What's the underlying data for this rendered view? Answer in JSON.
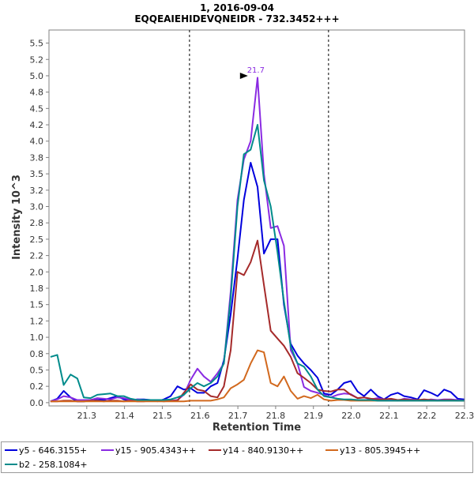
{
  "chart_data": {
    "type": "line",
    "title": "1, 2016-09-04",
    "subtitle": "EQQEAIEHIDEVQNEIDR - 732.3452+++",
    "xlabel": "Retention Time",
    "ylabel": "Intensity 10^3",
    "xlim": [
      21.2,
      22.3
    ],
    "ylim": [
      -0.05,
      5.7
    ],
    "x_ticks": [
      "21.3",
      "21.4",
      "21.5",
      "21.6",
      "21.7",
      "21.8",
      "21.9",
      "22.0",
      "22.1",
      "22.2",
      "22.3"
    ],
    "y_ticks": [
      "0.0",
      "0.2",
      "0.5",
      "0.8",
      "1.0",
      "1.2",
      "1.5",
      "1.8",
      "2.0",
      "2.2",
      "2.5",
      "2.8",
      "3.0",
      "3.2",
      "3.5",
      "3.8",
      "4.0",
      "4.2",
      "4.5",
      "4.8",
      "5.0",
      "5.2",
      "5.5"
    ],
    "y_tick_values": [
      0,
      0.25,
      0.5,
      0.75,
      1.0,
      1.25,
      1.5,
      1.75,
      2.0,
      2.25,
      2.5,
      2.75,
      3.0,
      3.25,
      3.5,
      3.75,
      4.0,
      4.25,
      4.5,
      4.75,
      5.0,
      5.25,
      5.5
    ],
    "boundaries": [
      21.572,
      21.94
    ],
    "peak_annotation": {
      "label": "21.7",
      "x": 21.735,
      "y": 5.0
    },
    "legend_position": "bottom",
    "grid": false,
    "series": [
      {
        "name": "y5 - 646.3155+",
        "color": "#0000dd",
        "x": [
          21.204,
          21.222,
          21.239,
          21.257,
          21.275,
          21.292,
          21.31,
          21.328,
          21.345,
          21.363,
          21.381,
          21.398,
          21.416,
          21.434,
          21.451,
          21.469,
          21.487,
          21.504,
          21.522,
          21.54,
          21.557,
          21.575,
          21.593,
          21.61,
          21.628,
          21.646,
          21.663,
          21.681,
          21.699,
          21.716,
          21.734,
          21.752,
          21.769,
          21.787,
          21.805,
          21.822,
          21.84,
          21.858,
          21.875,
          21.893,
          21.911,
          21.928,
          21.946,
          21.964,
          21.981,
          21.999,
          22.017,
          22.034,
          22.052,
          22.07,
          22.087,
          22.105,
          22.123,
          22.14,
          22.158,
          22.176,
          22.193,
          22.211,
          22.229,
          22.246,
          22.264,
          22.282,
          22.299
        ],
        "y": [
          0.02,
          0.06,
          0.18,
          0.08,
          0.02,
          0.02,
          0.03,
          0.04,
          0.04,
          0.07,
          0.1,
          0.05,
          0.03,
          0.05,
          0.05,
          0.04,
          0.02,
          0.05,
          0.1,
          0.25,
          0.2,
          0.22,
          0.15,
          0.15,
          0.25,
          0.3,
          0.65,
          1.35,
          2.2,
          3.1,
          3.67,
          3.3,
          2.28,
          2.5,
          2.5,
          1.5,
          0.9,
          0.72,
          0.6,
          0.5,
          0.38,
          0.14,
          0.12,
          0.2,
          0.3,
          0.33,
          0.17,
          0.1,
          0.2,
          0.1,
          0.05,
          0.12,
          0.15,
          0.1,
          0.08,
          0.05,
          0.19,
          0.15,
          0.1,
          0.2,
          0.16,
          0.06,
          0.05
        ]
      },
      {
        "name": "y15 - 905.4343++",
        "color": "#8a2be2",
        "x": [
          21.204,
          21.222,
          21.239,
          21.257,
          21.275,
          21.292,
          21.31,
          21.328,
          21.345,
          21.363,
          21.381,
          21.398,
          21.416,
          21.434,
          21.451,
          21.469,
          21.487,
          21.504,
          21.522,
          21.54,
          21.557,
          21.575,
          21.593,
          21.61,
          21.628,
          21.646,
          21.663,
          21.681,
          21.699,
          21.716,
          21.734,
          21.752,
          21.769,
          21.787,
          21.805,
          21.822,
          21.84,
          21.858,
          21.875,
          21.893,
          21.911,
          21.928,
          21.946,
          21.964,
          21.981,
          21.999,
          22.017,
          22.034,
          22.052,
          22.07,
          22.087,
          22.105,
          22.123,
          22.14,
          22.158,
          22.176,
          22.193,
          22.211,
          22.229,
          22.246,
          22.264,
          22.282,
          22.299
        ],
        "y": [
          0.02,
          0.05,
          0.1,
          0.08,
          0.04,
          0.04,
          0.04,
          0.07,
          0.06,
          0.05,
          0.08,
          0.07,
          0.04,
          0.05,
          0.04,
          0.04,
          0.04,
          0.04,
          0.03,
          0.04,
          0.12,
          0.35,
          0.52,
          0.4,
          0.32,
          0.45,
          0.6,
          1.7,
          3.1,
          3.72,
          4.0,
          4.97,
          3.5,
          2.67,
          2.7,
          2.4,
          0.8,
          0.6,
          0.24,
          0.18,
          0.15,
          0.12,
          0.08,
          0.12,
          0.14,
          0.13,
          0.07,
          0.08,
          0.05,
          0.07,
          0.05,
          0.04,
          0.03,
          0.06,
          0.05,
          0.04,
          0.03,
          0.05,
          0.04,
          0.05,
          0.05,
          0.04,
          0.03
        ]
      },
      {
        "name": "y14 - 840.9130++",
        "color": "#a52a2a",
        "x": [
          21.204,
          21.222,
          21.239,
          21.257,
          21.275,
          21.292,
          21.31,
          21.328,
          21.345,
          21.363,
          21.381,
          21.398,
          21.416,
          21.434,
          21.451,
          21.469,
          21.487,
          21.504,
          21.522,
          21.54,
          21.557,
          21.575,
          21.593,
          21.61,
          21.628,
          21.646,
          21.663,
          21.681,
          21.699,
          21.716,
          21.734,
          21.752,
          21.769,
          21.787,
          21.805,
          21.822,
          21.84,
          21.858,
          21.875,
          21.893,
          21.911,
          21.928,
          21.946,
          21.964,
          21.981,
          21.999,
          22.017,
          22.034,
          22.052,
          22.07,
          22.087,
          22.105,
          22.123,
          22.14,
          22.158,
          22.176,
          22.193,
          22.211,
          22.229,
          22.246,
          22.264,
          22.282,
          22.299
        ],
        "y": [
          0.02,
          0.02,
          0.03,
          0.03,
          0.02,
          0.02,
          0.03,
          0.03,
          0.02,
          0.03,
          0.03,
          0.02,
          0.03,
          0.02,
          0.02,
          0.03,
          0.03,
          0.02,
          0.03,
          0.03,
          0.15,
          0.28,
          0.2,
          0.18,
          0.1,
          0.08,
          0.25,
          0.8,
          2.0,
          1.95,
          2.15,
          2.48,
          1.8,
          1.1,
          0.98,
          0.87,
          0.7,
          0.45,
          0.38,
          0.3,
          0.2,
          0.18,
          0.17,
          0.2,
          0.2,
          0.12,
          0.07,
          0.08,
          0.06,
          0.05,
          0.05,
          0.06,
          0.04,
          0.05,
          0.04,
          0.04,
          0.05,
          0.04,
          0.03,
          0.04,
          0.04,
          0.03,
          0.03
        ]
      },
      {
        "name": "y13 - 805.3945++",
        "color": "#d2691e",
        "x": [
          21.204,
          21.222,
          21.239,
          21.257,
          21.275,
          21.292,
          21.31,
          21.328,
          21.345,
          21.363,
          21.381,
          21.398,
          21.416,
          21.434,
          21.451,
          21.469,
          21.487,
          21.504,
          21.522,
          21.54,
          21.557,
          21.575,
          21.593,
          21.61,
          21.628,
          21.646,
          21.663,
          21.681,
          21.699,
          21.716,
          21.734,
          21.752,
          21.769,
          21.787,
          21.805,
          21.822,
          21.84,
          21.858,
          21.875,
          21.893,
          21.911,
          21.928,
          21.946,
          21.964,
          21.981,
          21.999,
          22.017,
          22.034,
          22.052,
          22.07,
          22.087,
          22.105,
          22.123,
          22.14,
          22.158,
          22.176,
          22.193,
          22.211,
          22.229,
          22.246,
          22.264,
          22.282,
          22.299
        ],
        "y": [
          0.02,
          0.02,
          0.02,
          0.02,
          0.02,
          0.02,
          0.02,
          0.02,
          0.02,
          0.02,
          0.02,
          0.02,
          0.02,
          0.02,
          0.02,
          0.02,
          0.02,
          0.02,
          0.02,
          0.02,
          0.02,
          0.03,
          0.03,
          0.03,
          0.03,
          0.05,
          0.08,
          0.22,
          0.28,
          0.35,
          0.6,
          0.8,
          0.77,
          0.3,
          0.25,
          0.4,
          0.18,
          0.06,
          0.1,
          0.07,
          0.12,
          0.05,
          0.03,
          0.04,
          0.04,
          0.03,
          0.03,
          0.03,
          0.03,
          0.03,
          0.03,
          0.03,
          0.03,
          0.03,
          0.03,
          0.03,
          0.03,
          0.03,
          0.03,
          0.03,
          0.03,
          0.03,
          0.03
        ]
      },
      {
        "name": "b2 - 258.1084+",
        "color": "#008b8b",
        "x": [
          21.204,
          21.222,
          21.239,
          21.257,
          21.275,
          21.292,
          21.31,
          21.328,
          21.345,
          21.363,
          21.381,
          21.398,
          21.416,
          21.434,
          21.451,
          21.469,
          21.487,
          21.504,
          21.522,
          21.54,
          21.557,
          21.575,
          21.593,
          21.61,
          21.628,
          21.646,
          21.663,
          21.681,
          21.699,
          21.716,
          21.734,
          21.752,
          21.769,
          21.787,
          21.805,
          21.822,
          21.84,
          21.858,
          21.875,
          21.893,
          21.911,
          21.928,
          21.946,
          21.964,
          21.981,
          21.999,
          22.017,
          22.034,
          22.052,
          22.07,
          22.087,
          22.105,
          22.123,
          22.14,
          22.158,
          22.176,
          22.193,
          22.211,
          22.229,
          22.246,
          22.264,
          22.282,
          22.299
        ],
        "y": [
          0.7,
          0.73,
          0.27,
          0.43,
          0.37,
          0.08,
          0.07,
          0.12,
          0.13,
          0.14,
          0.1,
          0.1,
          0.06,
          0.04,
          0.04,
          0.04,
          0.04,
          0.04,
          0.05,
          0.08,
          0.12,
          0.22,
          0.3,
          0.25,
          0.3,
          0.4,
          0.6,
          1.6,
          3.0,
          3.8,
          3.87,
          4.25,
          3.4,
          3.0,
          2.3,
          1.55,
          0.86,
          0.6,
          0.55,
          0.4,
          0.2,
          0.1,
          0.08,
          0.06,
          0.05,
          0.05,
          0.04,
          0.04,
          0.04,
          0.03,
          0.03,
          0.03,
          0.03,
          0.03,
          0.03,
          0.03,
          0.03,
          0.03,
          0.03,
          0.03,
          0.03,
          0.03,
          0.03
        ]
      }
    ]
  }
}
